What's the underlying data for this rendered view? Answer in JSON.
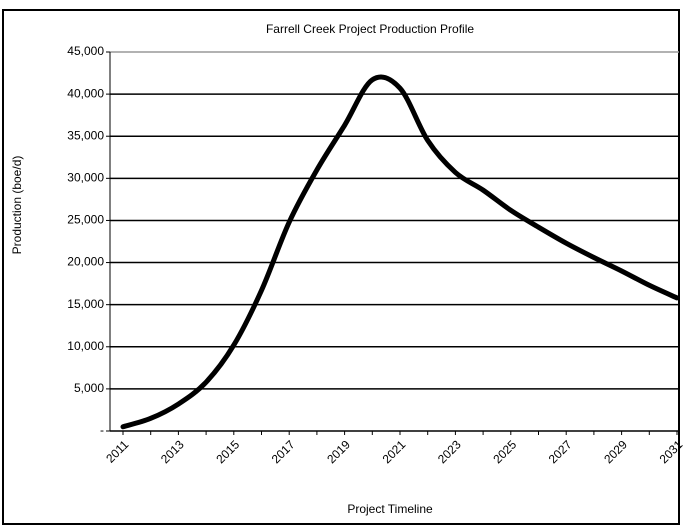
{
  "chart_data": {
    "type": "line",
    "title": "Farrell Creek Project Production Profile",
    "xlabel": "Project Timeline",
    "ylabel": "Production (boe/d)",
    "categories": [
      "2011",
      null,
      "2013",
      null,
      "2015",
      null,
      "2017",
      null,
      "2019",
      null,
      "2021",
      null,
      "2023",
      null,
      "2025",
      null,
      "2027",
      null,
      "2029",
      null,
      "2031"
    ],
    "series": [
      {
        "name": "Production",
        "color": "#000000",
        "values": [
          500,
          1500,
          3200,
          5800,
          10200,
          16700,
          24800,
          31000,
          36300,
          41700,
          40700,
          34500,
          30700,
          28600,
          26200,
          24200,
          22300,
          20600,
          19000,
          17300,
          15800
        ]
      }
    ],
    "ylim": [
      0,
      45000
    ],
    "yticks": [
      {
        "value": 0,
        "label": "-"
      },
      {
        "value": 5000,
        "label": "5,000"
      },
      {
        "value": 10000,
        "label": "10,000"
      },
      {
        "value": 15000,
        "label": "15,000"
      },
      {
        "value": 20000,
        "label": "20,000"
      },
      {
        "value": 25000,
        "label": "25,000"
      },
      {
        "value": 30000,
        "label": "30,000"
      },
      {
        "value": 35000,
        "label": "35,000"
      },
      {
        "value": 40000,
        "label": "40,000"
      },
      {
        "value": 45000,
        "label": "45,000"
      }
    ],
    "grid": true
  }
}
